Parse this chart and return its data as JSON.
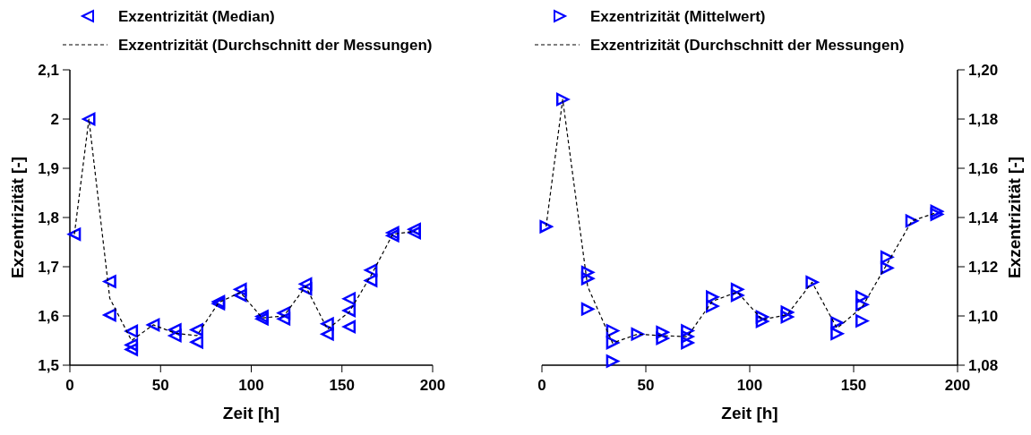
{
  "chart_data": [
    {
      "type": "scatter",
      "xlabel": "Zeit [h]",
      "ylabel": "Exzentrizität [-]",
      "xlim": [
        0,
        200
      ],
      "xticks": [
        0,
        50,
        100,
        150,
        200
      ],
      "ylim": [
        1.5,
        2.1
      ],
      "yticks": [
        {
          "value": 1.5,
          "label": "1,5"
        },
        {
          "value": 1.6,
          "label": "1,6"
        },
        {
          "value": 1.7,
          "label": "1,7"
        },
        {
          "value": 1.8,
          "label": "1,8"
        },
        {
          "value": 1.9,
          "label": "1,9"
        },
        2,
        {
          "value": 2.1,
          "label": "2,1"
        }
      ],
      "legend": "top",
      "grid": false,
      "series": [
        {
          "name": "Exzentrizität (Median)",
          "marker": "triangle",
          "color": "#0000ff",
          "x": [
            2.5,
            10.5,
            22,
            22,
            34,
            34,
            34,
            46,
            58,
            58,
            70,
            70,
            82,
            82,
            94,
            94,
            106,
            106,
            118,
            118,
            130,
            130,
            142,
            142,
            154,
            154,
            154,
            166,
            166,
            178,
            178,
            190,
            190
          ],
          "values": [
            1.766,
            2.0,
            1.67,
            1.602,
            1.569,
            1.541,
            1.532,
            1.582,
            1.572,
            1.56,
            1.572,
            1.547,
            1.629,
            1.625,
            1.654,
            1.642,
            1.599,
            1.594,
            1.606,
            1.594,
            1.665,
            1.655,
            1.584,
            1.563,
            1.635,
            1.611,
            1.578,
            1.693,
            1.672,
            1.769,
            1.763,
            1.776,
            1.769
          ]
        },
        {
          "name": "Exzentrizität (Durchschnitt der Messungen)",
          "type": "line",
          "line_style": "dashed",
          "marker": "none",
          "color": "#000000",
          "x": [
            2.5,
            10.5,
            22,
            34,
            46,
            58,
            70,
            82,
            94,
            106,
            118,
            130,
            142,
            154,
            166,
            178,
            190
          ],
          "values": [
            1.766,
            2.0,
            1.636,
            1.55,
            1.582,
            1.565,
            1.56,
            1.627,
            1.648,
            1.596,
            1.6,
            1.66,
            1.573,
            1.608,
            1.682,
            1.766,
            1.772
          ]
        }
      ]
    },
    {
      "type": "scatter",
      "xlabel": "Zeit [h]",
      "y2label": "Exzentrizität [-]",
      "xlim": [
        0,
        200
      ],
      "xticks": [
        0,
        50,
        100,
        150,
        200
      ],
      "y2lim": [
        1.08,
        1.2
      ],
      "y2ticks": [
        {
          "value": 1.08,
          "label": "1,08"
        },
        {
          "value": 1.1,
          "label": "1,10"
        },
        {
          "value": 1.12,
          "label": "1,12"
        },
        {
          "value": 1.14,
          "label": "1,14"
        },
        {
          "value": 1.16,
          "label": "1,16"
        },
        {
          "value": 1.18,
          "label": "1,18"
        },
        {
          "value": 1.2,
          "label": "1,20"
        }
      ],
      "legend": "top",
      "grid": false,
      "series": [
        {
          "name": "Exzentrizität (Mittelwert)",
          "axis": "y2",
          "marker": "triangle",
          "color": "#0000ff",
          "x": [
            2,
            10,
            22,
            22,
            22,
            34,
            34,
            34,
            46,
            58,
            58,
            70,
            70,
            70,
            82,
            82,
            94,
            94,
            106,
            106,
            118,
            118,
            130,
            142,
            142,
            154,
            154,
            154,
            166,
            166,
            178,
            190,
            190
          ],
          "values": [
            1.1363,
            1.188,
            1.1177,
            1.1152,
            1.1028,
            1.094,
            1.0891,
            1.0816,
            1.0926,
            1.0934,
            1.0909,
            1.094,
            1.0916,
            1.0891,
            1.1077,
            1.104,
            1.1108,
            1.1084,
            1.0996,
            1.0978,
            1.1015,
            1.0996,
            1.1137,
            1.0972,
            1.0928,
            1.1077,
            1.1046,
            1.098,
            1.1239,
            1.1195,
            1.1386,
            1.1425,
            1.1413
          ]
        },
        {
          "name": "Exzentrizität (Durchschnitt der Messungen)",
          "type": "line",
          "axis": "y2",
          "line_style": "dashed",
          "marker": "none",
          "color": "#000000",
          "x": [
            2,
            10,
            22,
            34,
            46,
            58,
            70,
            82,
            94,
            106,
            118,
            130,
            142,
            154,
            166,
            178,
            190
          ],
          "values": [
            1.1363,
            1.188,
            1.112,
            1.089,
            1.0926,
            1.092,
            1.0916,
            1.106,
            1.1097,
            1.0985,
            1.1005,
            1.1137,
            1.095,
            1.1035,
            1.121,
            1.1386,
            1.142
          ]
        }
      ]
    }
  ]
}
